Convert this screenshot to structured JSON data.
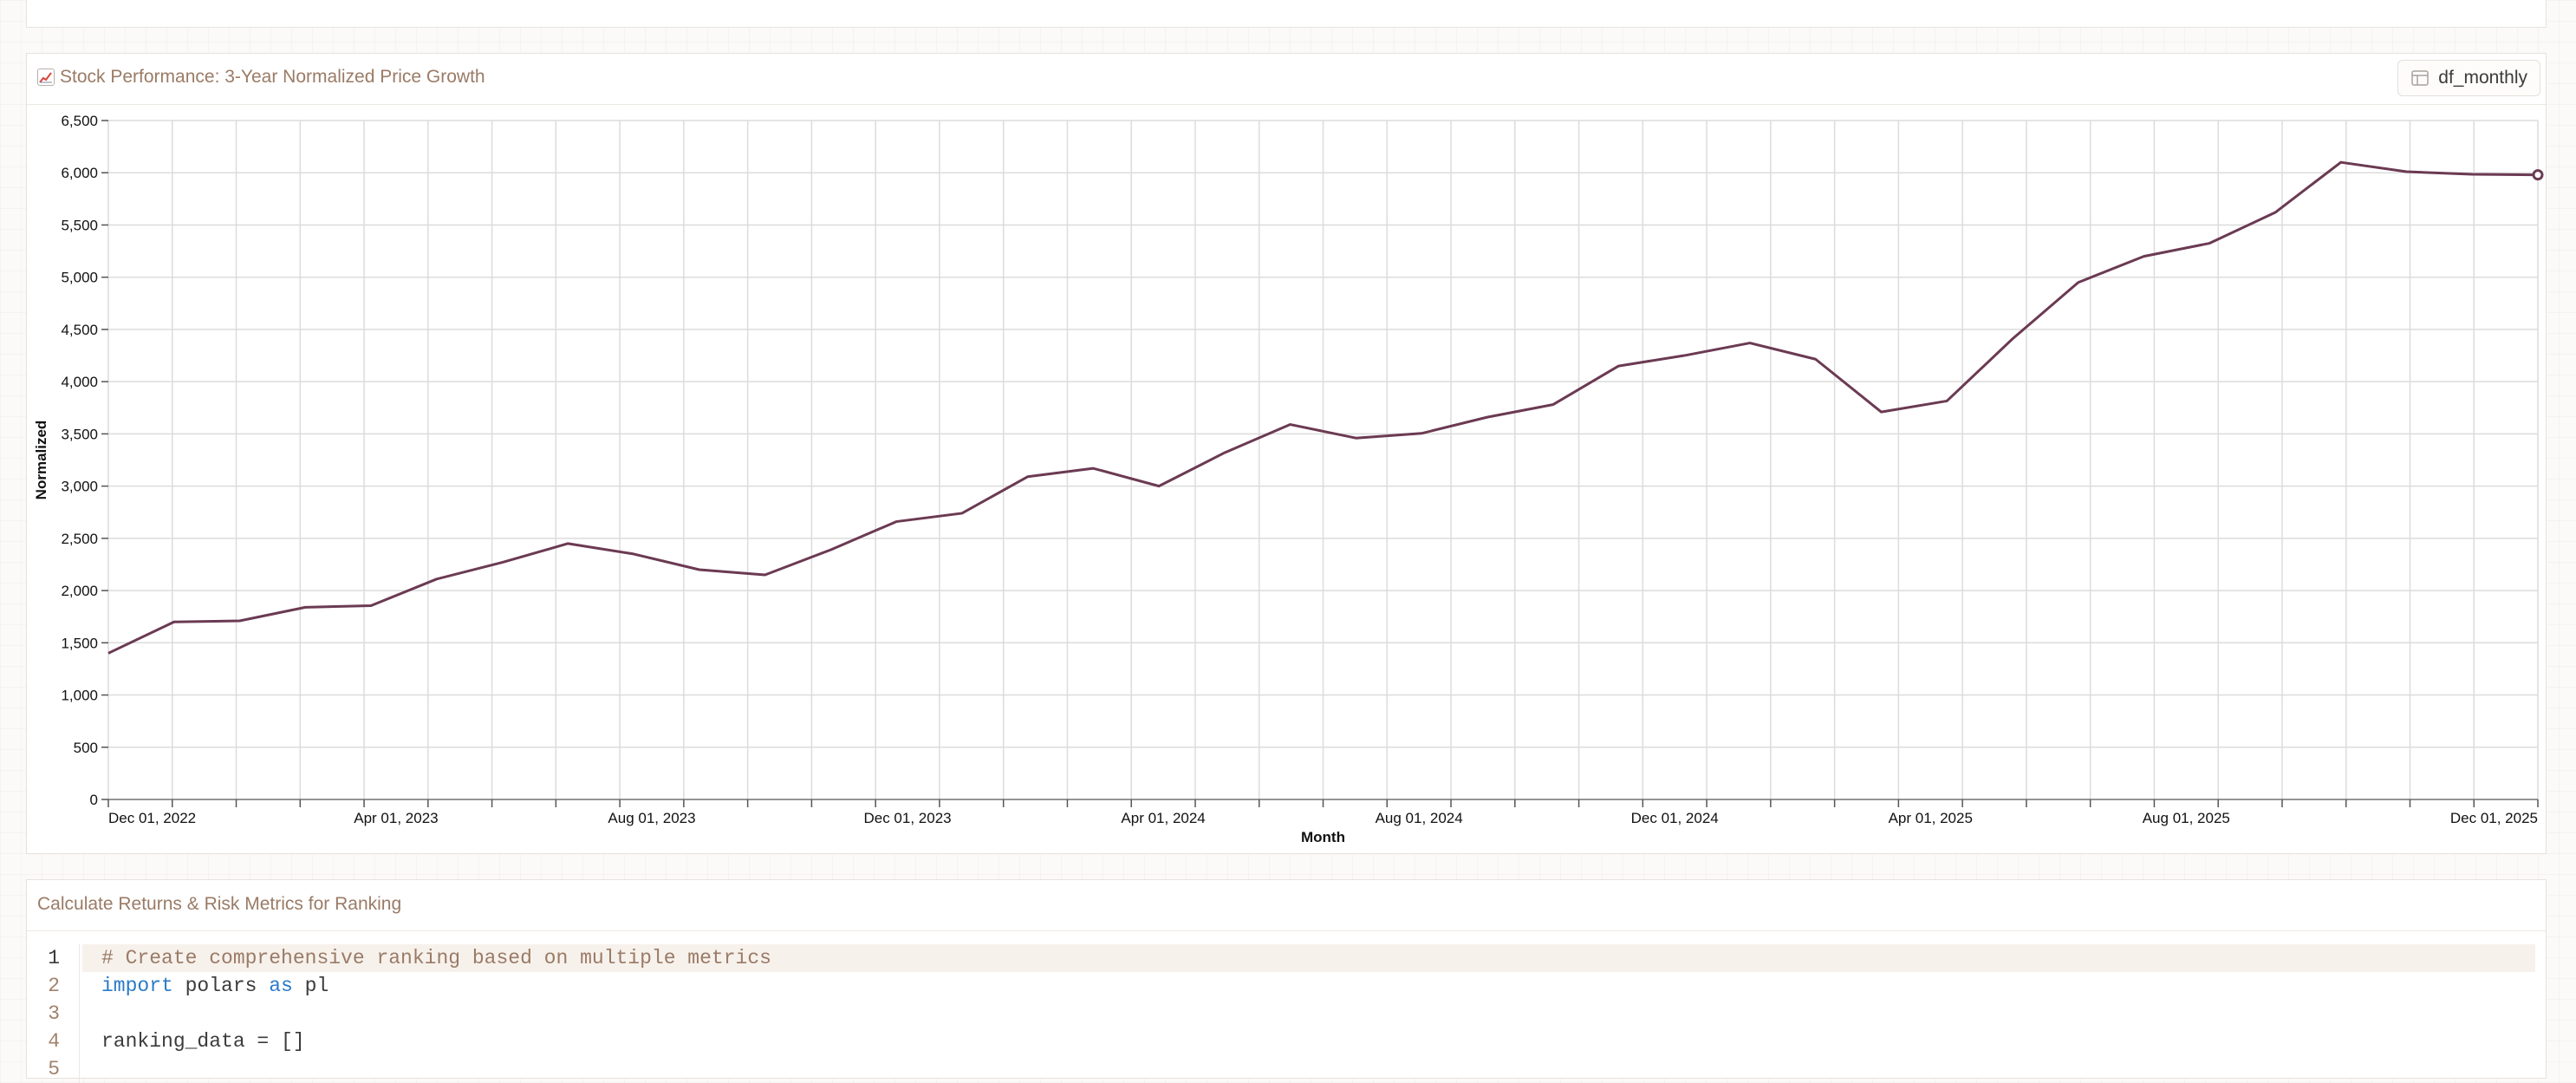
{
  "chart_card": {
    "title": "📈 Stock Performance: 3-Year Normalized Price Growth",
    "title_text": "Stock Performance: 3-Year Normalized Price Growth",
    "dataframe_button": "df_monthly",
    "icons": {
      "title": "chart-increasing-icon",
      "button": "table-icon"
    }
  },
  "chart_data": {
    "type": "line",
    "xlabel": "Month",
    "ylabel": "Normalized",
    "ylim": [
      0,
      6500
    ],
    "y_ticks": [
      0,
      500,
      1000,
      1500,
      2000,
      2500,
      3000,
      3500,
      4000,
      4500,
      5000,
      5500,
      6000,
      6500
    ],
    "y_tick_labels": [
      "0",
      "500",
      "1,000",
      "1,500",
      "2,000",
      "2,500",
      "3,000",
      "3,500",
      "4,000",
      "4,500",
      "5,000",
      "5,500",
      "6,000",
      "6,500"
    ],
    "x_tick_labels": [
      {
        "label": "Dec 01, 2022",
        "month_index": 0
      },
      {
        "label": "Apr 01, 2023",
        "month_index": 4
      },
      {
        "label": "Aug 01, 2023",
        "month_index": 8
      },
      {
        "label": "Dec 01, 2023",
        "month_index": 12
      },
      {
        "label": "Apr 01, 2024",
        "month_index": 16
      },
      {
        "label": "Aug 01, 2024",
        "month_index": 20
      },
      {
        "label": "Dec 01, 2024",
        "month_index": 24
      },
      {
        "label": "Apr 01, 2025",
        "month_index": 28
      },
      {
        "label": "Aug 01, 2025",
        "month_index": 32
      },
      {
        "label": "Dec 01, 2025",
        "month_index": 36
      }
    ],
    "x": [
      "2022-11",
      "2022-12",
      "2023-01",
      "2023-02",
      "2023-03",
      "2023-04",
      "2023-05",
      "2023-06",
      "2023-07",
      "2023-08",
      "2023-09",
      "2023-10",
      "2023-11",
      "2023-12",
      "2024-01",
      "2024-02",
      "2024-03",
      "2024-04",
      "2024-05",
      "2024-06",
      "2024-07",
      "2024-08",
      "2024-09",
      "2024-10",
      "2024-11",
      "2024-12",
      "2025-01",
      "2025-02",
      "2025-03",
      "2025-04",
      "2025-05",
      "2025-06",
      "2025-07",
      "2025-08",
      "2025-09",
      "2025-10",
      "2025-11",
      "2025-12"
    ],
    "series": [
      {
        "values": [
          1400,
          1700,
          1710,
          1840,
          1855,
          2110,
          2270,
          2450,
          2350,
          2200,
          2150,
          2390,
          2660,
          2740,
          3090,
          3170,
          3000,
          3320,
          3590,
          3460,
          3505,
          3660,
          3780,
          4150,
          4250,
          4370,
          4215,
          3710,
          3815,
          4410,
          4950,
          5200,
          5325,
          5620,
          6100,
          6010,
          5985,
          5980
        ],
        "color": "#6b3a52"
      }
    ],
    "grid": true,
    "legend": "none"
  },
  "code_card": {
    "title": "Calculate Returns & Risk Metrics for Ranking",
    "lines": [
      {
        "n": "1",
        "text": "# Create comprehensive ranking based on multiple metrics"
      },
      {
        "n": "2",
        "kw1": "import",
        "mid": " polars ",
        "kw2": "as",
        "end": " pl"
      },
      {
        "n": "3",
        "text": ""
      },
      {
        "n": "4",
        "text": "ranking_data = []"
      },
      {
        "n": "5",
        "text": ""
      }
    ]
  },
  "top_cell": {
    "text": "_ _ _ _ _ _"
  }
}
